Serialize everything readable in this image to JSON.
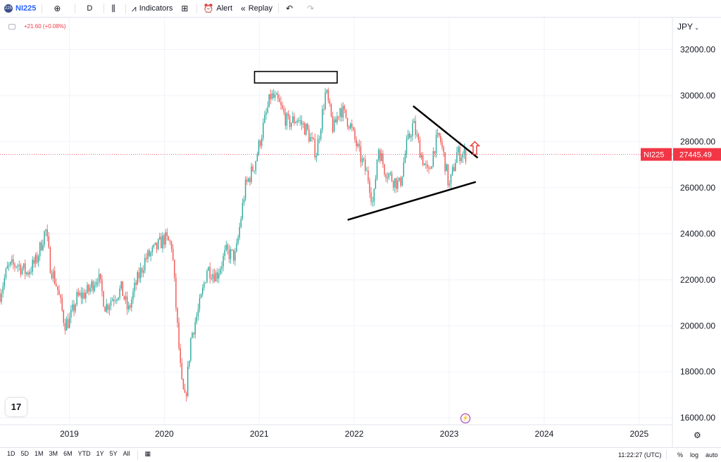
{
  "toolbar": {
    "symbol_logo": "225",
    "symbol": "NI225",
    "interval": "D",
    "indicators_label": "Indicators",
    "alert_label": "Alert",
    "replay_label": "Replay",
    "icons": [
      "plus-circle-icon",
      "candles-icon",
      "indicators-icon",
      "layouts-icon",
      "alert-icon",
      "replay-icon",
      "undo-icon",
      "redo-icon"
    ]
  },
  "legend": {
    "change": "+21.60 (+0.08%)"
  },
  "price_scale": {
    "currency": "JPY"
  },
  "time_ranges": [
    "1D",
    "5D",
    "1M",
    "3M",
    "6M",
    "YTD",
    "1Y",
    "5Y",
    "All"
  ],
  "clock": "11:22:27 (UTC)",
  "scale_options": {
    "percent": "%",
    "log": "log",
    "auto": "auto"
  },
  "tv_logo": "17",
  "colors": {
    "up": "#26a69a",
    "down": "#ef5350",
    "last_price_bg": "#f23645",
    "arrow": "#e53935"
  },
  "chart_data": {
    "type": "candlestick",
    "symbol": "NI225",
    "currency": "JPY",
    "last_price": "27445.49",
    "y_ticks": [
      "32000.00",
      "30000.00",
      "28000.00",
      "26000.00",
      "24000.00",
      "22000.00",
      "20000.00",
      "18000.00",
      "16000.00"
    ],
    "x_ticks": [
      "2019",
      "2020",
      "2021",
      "2022",
      "2023",
      "2024",
      "2025"
    ],
    "ylim": [
      15700,
      33300
    ],
    "xlim": [
      2018.27,
      2025.35
    ],
    "closes": [
      [
        2018.27,
        21400
      ],
      [
        2018.35,
        22500
      ],
      [
        2018.45,
        22700
      ],
      [
        2018.55,
        22300
      ],
      [
        2018.65,
        22800
      ],
      [
        2018.75,
        24200
      ],
      [
        2018.8,
        22600
      ],
      [
        2018.87,
        21700
      ],
      [
        2018.95,
        20100
      ],
      [
        2019.0,
        20200
      ],
      [
        2019.08,
        21200
      ],
      [
        2019.2,
        21500
      ],
      [
        2019.3,
        22200
      ],
      [
        2019.38,
        20800
      ],
      [
        2019.45,
        21200
      ],
      [
        2019.55,
        21600
      ],
      [
        2019.62,
        20600
      ],
      [
        2019.7,
        21800
      ],
      [
        2019.8,
        22900
      ],
      [
        2019.9,
        23300
      ],
      [
        2020.0,
        23800
      ],
      [
        2020.08,
        23500
      ],
      [
        2020.12,
        21000
      ],
      [
        2020.18,
        17500
      ],
      [
        2020.22,
        16700
      ],
      [
        2020.28,
        19500
      ],
      [
        2020.38,
        21000
      ],
      [
        2020.45,
        22500
      ],
      [
        2020.55,
        22200
      ],
      [
        2020.65,
        23200
      ],
      [
        2020.75,
        23000
      ],
      [
        2020.85,
        26000
      ],
      [
        2020.95,
        27000
      ],
      [
        2021.05,
        28800
      ],
      [
        2021.12,
        30000
      ],
      [
        2021.2,
        29700
      ],
      [
        2021.3,
        28800
      ],
      [
        2021.4,
        29000
      ],
      [
        2021.5,
        28500
      ],
      [
        2021.6,
        27500
      ],
      [
        2021.7,
        30200
      ],
      [
        2021.78,
        28500
      ],
      [
        2021.85,
        29500
      ],
      [
        2021.95,
        28800
      ],
      [
        2022.05,
        27500
      ],
      [
        2022.15,
        26400
      ],
      [
        2022.2,
        25200
      ],
      [
        2022.25,
        27800
      ],
      [
        2022.32,
        26800
      ],
      [
        2022.4,
        26400
      ],
      [
        2022.48,
        26100
      ],
      [
        2022.55,
        27800
      ],
      [
        2022.62,
        28800
      ],
      [
        2022.7,
        27500
      ],
      [
        2022.78,
        26500
      ],
      [
        2022.85,
        27900
      ],
      [
        2022.9,
        28200
      ],
      [
        2022.95,
        27200
      ],
      [
        2023.0,
        26000
      ],
      [
        2023.08,
        27500
      ],
      [
        2023.18,
        27445
      ]
    ],
    "annotations": {
      "rectangle": {
        "x": [
          2020.95,
          2021.82
        ],
        "y": [
          30550,
          31050
        ]
      },
      "upper_trendline": [
        [
          2022.62,
          29550
        ],
        [
          2023.3,
          27300
        ]
      ],
      "lower_trendline": [
        [
          2021.93,
          24600
        ],
        [
          2023.28,
          26250
        ]
      ],
      "arrow_up": {
        "x": 2023.27,
        "y": [
          27450,
          28000
        ]
      }
    }
  }
}
